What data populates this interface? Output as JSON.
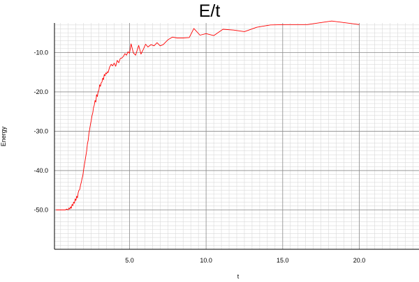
{
  "chart_data": {
    "type": "line",
    "title": "E/t",
    "xlabel": "t",
    "ylabel": "Energy",
    "xlim": [
      0.1,
      23.9
    ],
    "ylim": [
      -60,
      -2.5
    ],
    "x_major_ticks": [
      5,
      10,
      15,
      20
    ],
    "x_tick_labels": [
      "5.0",
      "10.0",
      "15.0",
      "20.0"
    ],
    "y_major_ticks": [
      -10,
      -20,
      -30,
      -40,
      -50
    ],
    "y_tick_labels": [
      "-10.0",
      "-20.0",
      "-30.0",
      "-40.0",
      "-50.0"
    ],
    "grid": true,
    "series_color": "#ff0000",
    "series": [
      {
        "x": [
          0.2,
          0.8,
          0.9,
          1.0,
          1.05,
          1.1,
          1.15,
          1.2,
          1.25,
          1.3,
          1.35,
          1.4,
          1.45,
          1.5,
          1.55,
          1.6,
          1.65,
          1.7,
          1.75,
          1.8,
          1.85,
          1.9,
          1.95,
          2.0,
          2.05,
          2.1,
          2.15,
          2.2,
          2.25,
          2.3,
          2.35,
          2.4,
          2.45,
          2.5,
          2.55,
          2.6,
          2.65,
          2.7,
          2.75,
          2.8,
          2.85,
          2.9,
          2.95,
          3.0,
          3.05,
          3.1,
          3.15,
          3.2,
          3.25,
          3.3,
          3.35,
          3.4,
          3.45,
          3.5,
          3.55,
          3.6,
          3.7,
          3.8,
          3.9,
          4.0,
          4.1,
          4.2,
          4.3,
          4.4,
          4.5,
          4.6,
          4.7,
          4.8,
          4.9,
          5.0,
          5.1,
          5.25,
          5.4,
          5.6,
          5.75,
          5.9,
          6.05,
          6.2,
          6.4,
          6.6,
          6.8,
          7.0,
          7.2,
          7.5,
          7.8,
          8.1,
          8.5,
          8.9,
          9.2,
          9.6,
          10.0,
          10.5,
          11.1,
          11.8,
          12.5,
          13.3,
          14.2,
          15.2,
          16.6,
          18.2,
          20.0
        ],
        "y": [
          -50.0,
          -50.0,
          -49.8,
          -50.0,
          -49.5,
          -49.8,
          -49.2,
          -49.6,
          -48.6,
          -48.9,
          -48.0,
          -48.3,
          -47.2,
          -47.6,
          -46.5,
          -46.9,
          -45.6,
          -45.0,
          -44.8,
          -43.7,
          -43.0,
          -42.0,
          -41.3,
          -39.8,
          -38.6,
          -37.4,
          -36.2,
          -35.0,
          -33.2,
          -32.3,
          -30.6,
          -29.5,
          -28.3,
          -27.3,
          -26.1,
          -25.4,
          -24.0,
          -23.4,
          -22.2,
          -22.6,
          -20.7,
          -21.2,
          -19.9,
          -19.6,
          -18.2,
          -18.6,
          -17.7,
          -17.5,
          -16.5,
          -16.9,
          -15.6,
          -15.9,
          -15.2,
          -15.4,
          -14.9,
          -15.1,
          -13.7,
          -13.0,
          -13.4,
          -12.7,
          -13.5,
          -12.0,
          -12.6,
          -11.5,
          -11.4,
          -11.0,
          -10.3,
          -10.7,
          -9.8,
          -10.2,
          -7.8,
          -10.1,
          -10.7,
          -8.2,
          -10.4,
          -9.2,
          -7.9,
          -8.6,
          -8.0,
          -8.3,
          -7.5,
          -8.3,
          -8.0,
          -6.8,
          -6.1,
          -6.3,
          -6.3,
          -6.2,
          -3.9,
          -5.6,
          -5.2,
          -5.7,
          -4.1,
          -4.3,
          -4.7,
          -3.6,
          -3.0,
          -2.9,
          -2.9,
          -2.0,
          -2.9
        ]
      }
    ]
  }
}
